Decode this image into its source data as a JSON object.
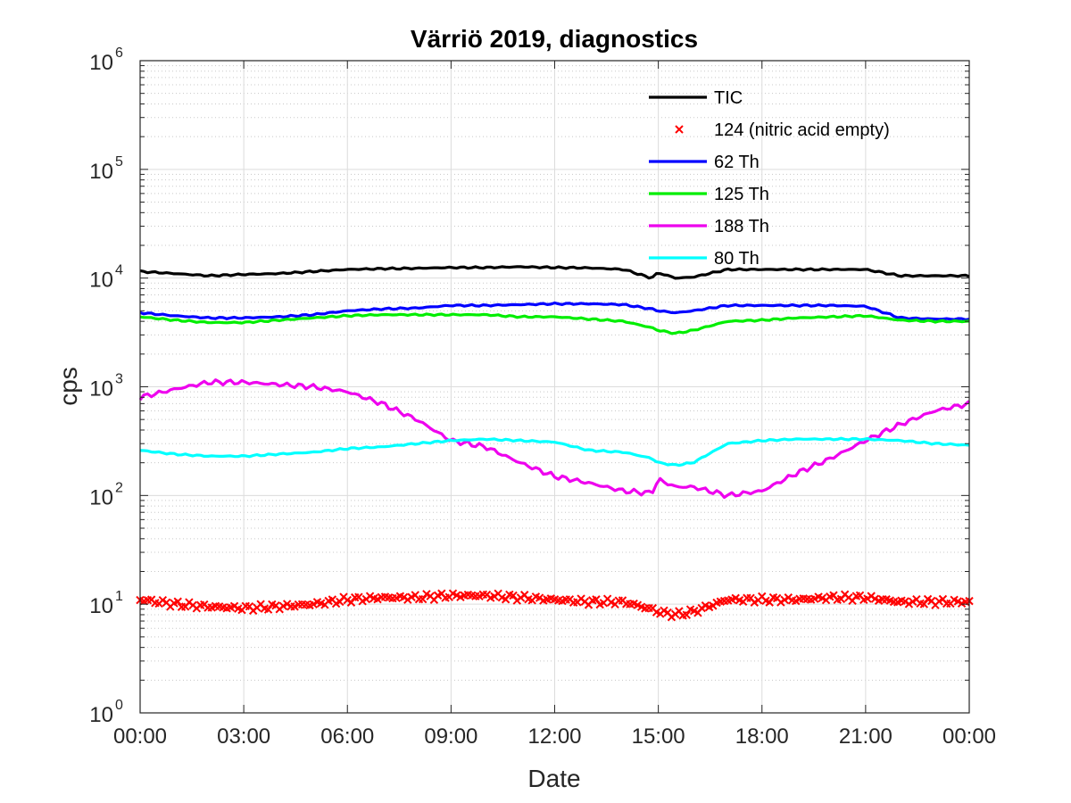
{
  "chart_data": {
    "type": "line",
    "title": "Värriö 2019, diagnostics",
    "xlabel": "Date",
    "ylabel": "cps",
    "yscale": "log",
    "ylim": [
      1,
      1000000
    ],
    "xlim": [
      "00:00",
      "24:00"
    ],
    "x_tick_labels": [
      "00:00",
      "03:00",
      "06:00",
      "09:00",
      "12:00",
      "15:00",
      "18:00",
      "21:00",
      "00:00"
    ],
    "y_tick_labels": [
      {
        "base": "10",
        "exp": "0"
      },
      {
        "base": "10",
        "exp": "1"
      },
      {
        "base": "10",
        "exp": "2"
      },
      {
        "base": "10",
        "exp": "3"
      },
      {
        "base": "10",
        "exp": "4"
      },
      {
        "base": "10",
        "exp": "5"
      },
      {
        "base": "10",
        "exp": "6"
      }
    ],
    "grid": true,
    "minor_grid": true,
    "legend_position": "top-right",
    "x_hours": [
      0,
      1,
      2,
      3,
      4,
      5,
      6,
      7,
      8,
      9,
      10,
      11,
      12,
      13,
      14,
      14.8,
      15,
      15.5,
      16,
      17,
      18,
      19,
      20,
      21,
      22,
      23,
      24
    ],
    "series": [
      {
        "name": "TIC",
        "color": "#000000",
        "marker": "line",
        "values": [
          11500,
          11000,
          10500,
          10800,
          11000,
          11500,
          12000,
          12200,
          12300,
          12500,
          12500,
          12700,
          12500,
          12400,
          12000,
          10000,
          11200,
          10000,
          10200,
          12000,
          12000,
          12000,
          12000,
          12000,
          10500,
          10500,
          10500
        ]
      },
      {
        "name": "124 (nitric acid empty)",
        "color": "#ff0000",
        "marker": "x",
        "values": [
          11,
          10,
          9.5,
          9.2,
          9.5,
          10,
          11,
          11.5,
          11.5,
          12,
          12,
          11.5,
          11,
          10.5,
          10.5,
          9,
          8.5,
          8,
          8.5,
          11,
          11,
          11,
          11.5,
          11.5,
          10.5,
          10.5,
          10.5
        ]
      },
      {
        "name": "62 Th",
        "color": "#0000ff",
        "marker": "line",
        "values": [
          4800,
          4500,
          4300,
          4300,
          4400,
          4600,
          5000,
          5200,
          5300,
          5600,
          5600,
          5700,
          5800,
          5800,
          5700,
          5200,
          5000,
          4800,
          5000,
          5600,
          5600,
          5600,
          5600,
          5500,
          4300,
          4200,
          4200
        ]
      },
      {
        "name": "125 Th",
        "color": "#00ee00",
        "marker": "line",
        "values": [
          4400,
          4100,
          3900,
          3900,
          4100,
          4300,
          4500,
          4600,
          4600,
          4600,
          4600,
          4400,
          4400,
          4200,
          4000,
          3500,
          3300,
          3100,
          3300,
          4000,
          4100,
          4300,
          4400,
          4500,
          4100,
          4000,
          4000
        ]
      },
      {
        "name": "188 Th",
        "color": "#ee00ee",
        "marker": "line",
        "values": [
          800,
          950,
          1100,
          1100,
          1050,
          1000,
          900,
          700,
          500,
          320,
          280,
          200,
          150,
          130,
          110,
          105,
          140,
          120,
          120,
          100,
          110,
          160,
          220,
          320,
          450,
          600,
          700
        ]
      },
      {
        "name": "80 Th",
        "color": "#00ffff",
        "marker": "line",
        "values": [
          260,
          240,
          230,
          230,
          240,
          250,
          270,
          280,
          300,
          320,
          330,
          320,
          310,
          260,
          250,
          220,
          200,
          190,
          200,
          300,
          320,
          330,
          330,
          330,
          320,
          300,
          290
        ]
      }
    ]
  }
}
